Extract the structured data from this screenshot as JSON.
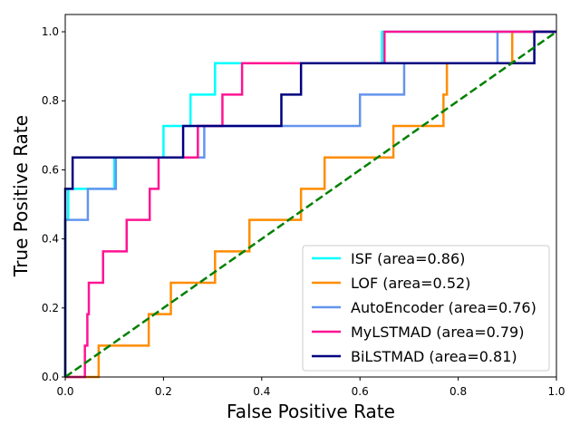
{
  "chart_data": {
    "type": "line",
    "title": "",
    "xlabel": "False Positive Rate",
    "ylabel": "True Positive Rate",
    "xlim": [
      0.0,
      1.0
    ],
    "ylim": [
      0.0,
      1.05
    ],
    "xticks": [
      0.0,
      0.2,
      0.4,
      0.6,
      0.8,
      1.0
    ],
    "yticks": [
      0.0,
      0.2,
      0.4,
      0.6,
      0.8,
      1.0
    ],
    "xtick_labels": [
      "0.0",
      "0.2",
      "0.4",
      "0.6",
      "0.8",
      "1.0"
    ],
    "ytick_labels": [
      "0.0",
      "0.2",
      "0.4",
      "0.6",
      "0.8",
      "1.0"
    ],
    "grid": false,
    "legend_position": "lower-right",
    "series": [
      {
        "name": "ISF (area=0.86)",
        "color": "#00ffff",
        "x": [
          0.0,
          0.0,
          0.006,
          0.006,
          0.1,
          0.1,
          0.103,
          0.103,
          0.2,
          0.2,
          0.255,
          0.255,
          0.305,
          0.305,
          0.645,
          0.645,
          1.0,
          1.0
        ],
        "y": [
          0.0,
          0.455,
          0.455,
          0.545,
          0.545,
          0.636,
          0.636,
          0.636,
          0.636,
          0.727,
          0.727,
          0.818,
          0.818,
          0.909,
          0.909,
          1.0,
          1.0,
          1.0
        ]
      },
      {
        "name": "LOF (area=0.52)",
        "color": "#ff8c00",
        "x": [
          0.0,
          0.068,
          0.068,
          0.17,
          0.17,
          0.215,
          0.215,
          0.305,
          0.305,
          0.375,
          0.375,
          0.48,
          0.48,
          0.528,
          0.528,
          0.668,
          0.668,
          0.77,
          0.77,
          0.777,
          0.777,
          0.91,
          0.91,
          1.0
        ],
        "y": [
          0.0,
          0.0,
          0.091,
          0.091,
          0.182,
          0.182,
          0.273,
          0.273,
          0.364,
          0.364,
          0.455,
          0.455,
          0.545,
          0.545,
          0.636,
          0.636,
          0.727,
          0.727,
          0.818,
          0.818,
          0.909,
          0.909,
          1.0,
          1.0
        ]
      },
      {
        "name": "AutoEncoder (area=0.76)",
        "color": "#6495ed",
        "x": [
          0.0,
          0.0,
          0.003,
          0.003,
          0.046,
          0.046,
          0.103,
          0.103,
          0.265,
          0.265,
          0.283,
          0.283,
          0.6,
          0.6,
          0.69,
          0.69,
          0.88,
          0.88,
          1.0
        ],
        "y": [
          0.0,
          0.455,
          0.455,
          0.455,
          0.455,
          0.545,
          0.545,
          0.636,
          0.636,
          0.636,
          0.636,
          0.727,
          0.727,
          0.818,
          0.818,
          0.909,
          0.909,
          1.0,
          1.0
        ]
      },
      {
        "name": "MyLSTMAD (area=0.79)",
        "color": "#ff1493",
        "x": [
          0.0,
          0.04,
          0.04,
          0.045,
          0.045,
          0.048,
          0.048,
          0.077,
          0.077,
          0.125,
          0.125,
          0.172,
          0.172,
          0.19,
          0.19,
          0.27,
          0.27,
          0.32,
          0.32,
          0.36,
          0.36,
          0.65,
          0.65,
          1.0
        ],
        "y": [
          0.0,
          0.0,
          0.091,
          0.091,
          0.182,
          0.182,
          0.273,
          0.273,
          0.364,
          0.364,
          0.455,
          0.455,
          0.545,
          0.545,
          0.636,
          0.636,
          0.727,
          0.727,
          0.818,
          0.818,
          0.909,
          0.909,
          1.0,
          1.0
        ]
      },
      {
        "name": "BiLSTMAD (area=0.81)",
        "color": "#000080",
        "x": [
          0.0,
          0.0,
          0.015,
          0.015,
          0.24,
          0.24,
          0.44,
          0.44,
          0.48,
          0.48,
          0.955,
          0.955,
          1.0
        ],
        "y": [
          0.0,
          0.545,
          0.545,
          0.636,
          0.636,
          0.727,
          0.727,
          0.818,
          0.818,
          0.909,
          0.909,
          1.0,
          1.0
        ]
      },
      {
        "name": "",
        "color": "#008000",
        "dashed": true,
        "x": [
          0.0,
          1.0
        ],
        "y": [
          0.0,
          1.0
        ]
      }
    ]
  }
}
